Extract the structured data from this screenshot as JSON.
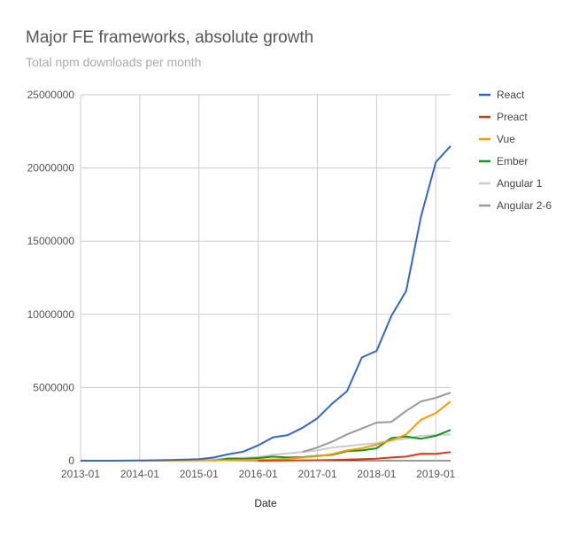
{
  "chart_data": {
    "type": "line",
    "title": "Major FE frameworks, absolute growth",
    "subtitle": "Total npm downloads per month",
    "xlabel": "Date",
    "ylabel": "",
    "x_ticks": [
      "2013-01",
      "2014-01",
      "2015-01",
      "2016-01",
      "2017-01",
      "2018-01",
      "2019-01"
    ],
    "y_ticks": [
      "0",
      "5000000",
      "10000000",
      "15000000",
      "20000000",
      "25000000"
    ],
    "ylim": [
      0,
      25000000
    ],
    "xlim": [
      "2013-01",
      "2019-04"
    ],
    "grid": true,
    "legend_position": "right",
    "series": [
      {
        "name": "React",
        "color": "#3366cc",
        "points": [
          [
            "2013-01",
            0
          ],
          [
            "2013-07",
            0
          ],
          [
            "2014-01",
            10000
          ],
          [
            "2014-07",
            40000
          ],
          [
            "2015-01",
            100000
          ],
          [
            "2015-04",
            220000
          ],
          [
            "2015-07",
            450000
          ],
          [
            "2015-10",
            620000
          ],
          [
            "2016-01",
            1050000
          ],
          [
            "2016-04",
            1600000
          ],
          [
            "2016-07",
            1750000
          ],
          [
            "2016-10",
            2250000
          ],
          [
            "2017-01",
            2900000
          ],
          [
            "2017-04",
            3900000
          ],
          [
            "2017-07",
            4750000
          ],
          [
            "2017-10",
            7050000
          ],
          [
            "2018-01",
            7500000
          ],
          [
            "2018-04",
            9900000
          ],
          [
            "2018-07",
            11600000
          ],
          [
            "2018-10",
            16700000
          ],
          [
            "2019-01",
            20400000
          ],
          [
            "2019-04",
            21500000
          ]
        ]
      },
      {
        "name": "Preact",
        "color": "#dc3912",
        "points": [
          [
            "2016-01",
            0
          ],
          [
            "2016-07",
            10000
          ],
          [
            "2017-01",
            30000
          ],
          [
            "2017-07",
            70000
          ],
          [
            "2018-01",
            140000
          ],
          [
            "2018-04",
            220000
          ],
          [
            "2018-07",
            280000
          ],
          [
            "2018-10",
            480000
          ],
          [
            "2019-01",
            470000
          ],
          [
            "2019-04",
            580000
          ]
        ]
      },
      {
        "name": "Vue",
        "color": "#ff9900",
        "points": [
          [
            "2014-01",
            0
          ],
          [
            "2015-01",
            10000
          ],
          [
            "2016-01",
            60000
          ],
          [
            "2016-07",
            130000
          ],
          [
            "2017-01",
            300000
          ],
          [
            "2017-04",
            450000
          ],
          [
            "2017-07",
            700000
          ],
          [
            "2017-10",
            850000
          ],
          [
            "2018-01",
            1100000
          ],
          [
            "2018-04",
            1400000
          ],
          [
            "2018-07",
            1800000
          ],
          [
            "2018-10",
            2800000
          ],
          [
            "2019-01",
            3250000
          ],
          [
            "2019-04",
            4050000
          ]
        ]
      },
      {
        "name": "Ember",
        "color": "#109618",
        "points": [
          [
            "2015-04",
            0
          ],
          [
            "2015-07",
            150000
          ],
          [
            "2015-10",
            130000
          ],
          [
            "2016-01",
            180000
          ],
          [
            "2016-04",
            280000
          ],
          [
            "2016-07",
            220000
          ],
          [
            "2016-10",
            240000
          ],
          [
            "2017-01",
            330000
          ],
          [
            "2017-04",
            400000
          ],
          [
            "2017-07",
            650000
          ],
          [
            "2017-10",
            700000
          ],
          [
            "2018-01",
            850000
          ],
          [
            "2018-04",
            1550000
          ],
          [
            "2018-07",
            1650000
          ],
          [
            "2018-10",
            1500000
          ],
          [
            "2019-01",
            1700000
          ],
          [
            "2019-04",
            2100000
          ]
        ]
      },
      {
        "name": "Angular 1",
        "color": "#cccccc",
        "points": [
          [
            "2015-01",
            50000
          ],
          [
            "2015-07",
            150000
          ],
          [
            "2016-01",
            250000
          ],
          [
            "2016-04",
            420000
          ],
          [
            "2016-07",
            500000
          ],
          [
            "2016-10",
            600000
          ],
          [
            "2017-01",
            700000
          ],
          [
            "2017-04",
            900000
          ],
          [
            "2017-07",
            1000000
          ],
          [
            "2017-10",
            1100000
          ],
          [
            "2018-01",
            1200000
          ],
          [
            "2018-04",
            1400000
          ],
          [
            "2018-07",
            1500000
          ],
          [
            "2018-10",
            1700000
          ],
          [
            "2019-01",
            1750000
          ],
          [
            "2019-04",
            1800000
          ]
        ]
      },
      {
        "name": "Angular 2-6",
        "color": "#999999",
        "points": [
          [
            "2016-10",
            600000
          ],
          [
            "2017-01",
            900000
          ],
          [
            "2017-04",
            1300000
          ],
          [
            "2017-07",
            1800000
          ],
          [
            "2017-10",
            2200000
          ],
          [
            "2018-01",
            2600000
          ],
          [
            "2018-04",
            2650000
          ],
          [
            "2018-07",
            3400000
          ],
          [
            "2018-10",
            4050000
          ],
          [
            "2019-01",
            4300000
          ],
          [
            "2019-04",
            4650000
          ]
        ]
      }
    ]
  }
}
